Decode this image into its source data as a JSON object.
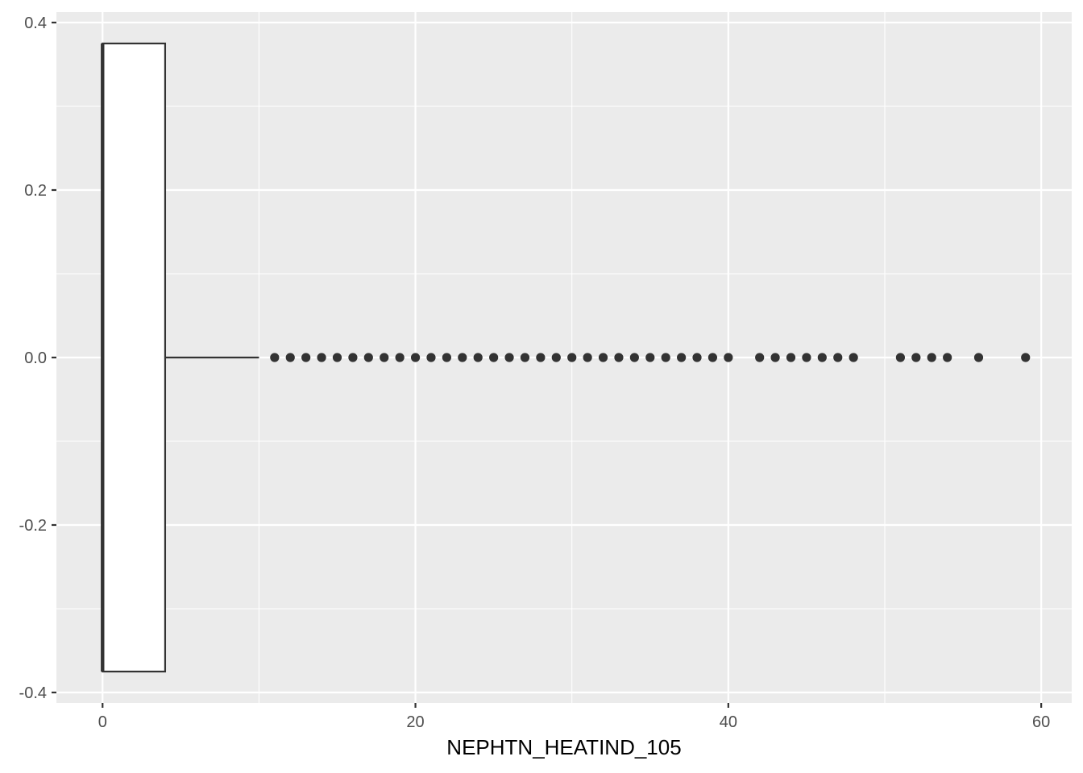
{
  "chart_data": {
    "type": "boxplot",
    "orientation": "horizontal",
    "title": "",
    "xlabel": "NEPHTN_HEATIND_105",
    "ylabel": "",
    "xlim": [
      -2.95,
      61.95
    ],
    "ylim": [
      -0.4125,
      0.4125
    ],
    "x_ticks": [
      0,
      20,
      40,
      60
    ],
    "x_tick_labels": [
      "0",
      "20",
      "40",
      "60"
    ],
    "y_ticks": [
      -0.4,
      -0.2,
      0.0,
      0.2,
      0.4
    ],
    "y_tick_labels": [
      "-0.4",
      "-0.2",
      "0.0",
      "0.2",
      "0.4"
    ],
    "grid": true,
    "box": {
      "min": 0,
      "q1": 0,
      "median": 0,
      "q3": 4,
      "whisker_low": 0,
      "whisker_high": 10,
      "y_center": 0,
      "y_half_width": 0.375
    },
    "outliers": [
      11,
      12,
      13,
      14,
      15,
      16,
      17,
      18,
      19,
      20,
      21,
      22,
      23,
      24,
      25,
      26,
      27,
      28,
      29,
      30,
      31,
      32,
      33,
      34,
      35,
      36,
      37,
      38,
      39,
      40,
      42,
      43,
      44,
      45,
      46,
      47,
      48,
      51,
      52,
      53,
      54,
      56,
      59
    ],
    "colors": {
      "panel_background": "#ebebeb",
      "grid_major": "#ffffff",
      "box_fill": "#ffffff",
      "box_stroke": "#333333",
      "point": "#333333"
    }
  }
}
